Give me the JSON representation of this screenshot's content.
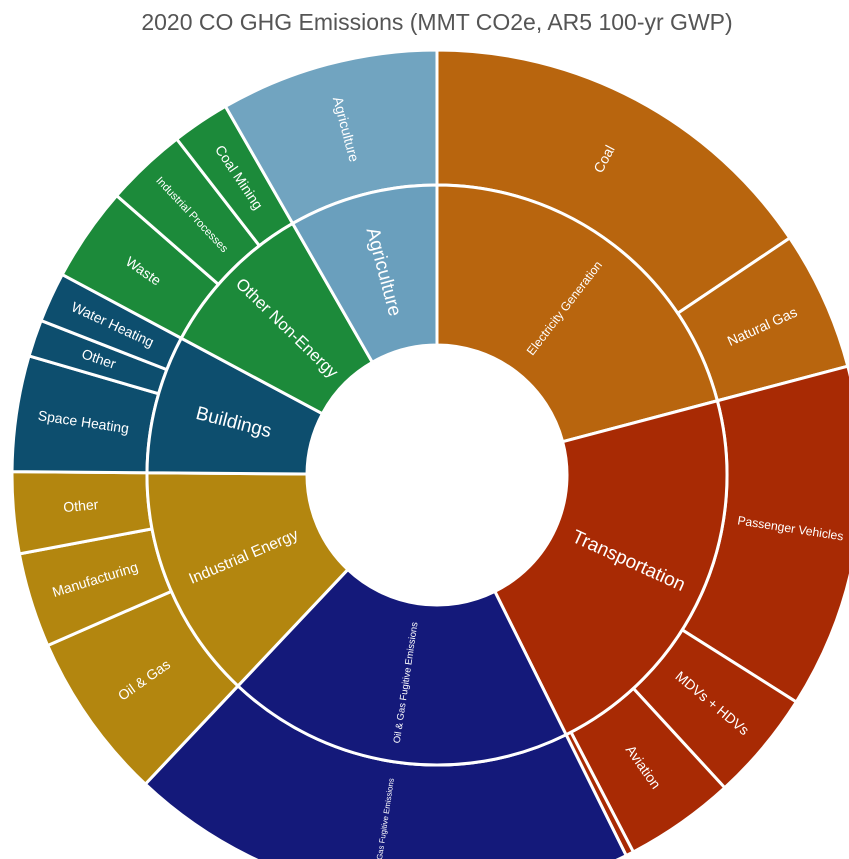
{
  "chart_data": {
    "type": "sunburst",
    "title": "2020 CO GHG Emissions (MMT CO2e, AR5 100-yr GWP)",
    "groups": [
      {
        "name": "Electricity Generation",
        "color": "#b8650e",
        "children": [
          {
            "name": "Coal",
            "value": 15.6
          },
          {
            "name": "Natural Gas",
            "value": 5.3
          }
        ]
      },
      {
        "name": "Transportation",
        "color": "#a82a04",
        "children": [
          {
            "name": "Passenger Vehicles",
            "value": 13.1
          },
          {
            "name": "MDVs + HDVs",
            "value": 4.2
          },
          {
            "name": "Aviation",
            "value": 4.2
          },
          {
            "name": null,
            "value": 0.3
          }
        ]
      },
      {
        "name": "Oil & Gas Fugitive Emissions",
        "color": "#14197a",
        "children": [
          {
            "name": "Oil & Gas Fugitive Emissions",
            "value": 19.4
          }
        ]
      },
      {
        "name": "Industrial Energy",
        "color": "#b3860f",
        "children": [
          {
            "name": "Oil & Gas",
            "value": 6.4
          },
          {
            "name": "Manufacturing",
            "value": 3.6
          },
          {
            "name": "Other",
            "value": 3.1
          }
        ]
      },
      {
        "name": "Buildings",
        "color": "#0d4e6e",
        "children": [
          {
            "name": "Space Heating",
            "value": 4.4
          },
          {
            "name": "Other",
            "value": 1.4
          },
          {
            "name": "Water Heating",
            "value": 1.9
          }
        ]
      },
      {
        "name": "Other Non-Energy",
        "color": "#1c8a3a",
        "children": [
          {
            "name": "Waste",
            "value": 3.6
          },
          {
            "name": "Industrial Processes",
            "value": 3.1
          },
          {
            "name": "Coal Mining",
            "value": 2.2
          }
        ]
      },
      {
        "name": "Agriculture",
        "color": "#6a9fbd",
        "children": [
          {
            "name": "Agriculture",
            "value": 8.3
          }
        ]
      }
    ]
  }
}
